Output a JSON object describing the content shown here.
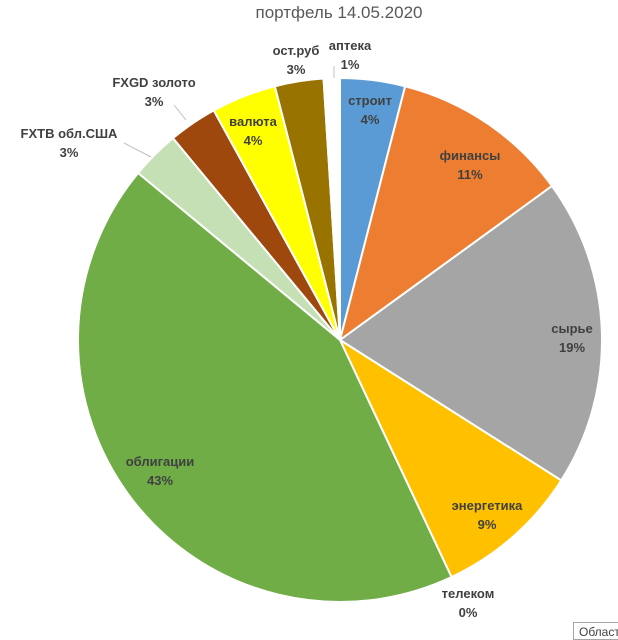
{
  "chart_data": {
    "type": "pie",
    "title": "портфель 14.05.2020",
    "slices": [
      {
        "label": "строит",
        "value": 4,
        "value_label": "4%",
        "color": "#5b9bd5"
      },
      {
        "label": "финансы",
        "value": 11,
        "value_label": "11%",
        "color": "#ed7d31"
      },
      {
        "label": "сырье",
        "value": 19,
        "value_label": "19%",
        "color": "#a5a5a5"
      },
      {
        "label": "энергетика",
        "value": 9,
        "value_label": "9%",
        "color": "#ffc000"
      },
      {
        "label": "телеком",
        "value": 0,
        "value_label": "0%",
        "color": "#4472c4"
      },
      {
        "label": "облигации",
        "value": 43,
        "value_label": "43%",
        "color": "#70ad47"
      },
      {
        "label": "FXTB обл.США",
        "value": 3,
        "value_label": "3%",
        "color": "#c5e0b4"
      },
      {
        "label": "FXGD золото",
        "value": 3,
        "value_label": "3%",
        "color": "#9e480e"
      },
      {
        "label": "валюта",
        "value": 4,
        "value_label": "4%",
        "color": "#ffff00"
      },
      {
        "label": "ост.руб",
        "value": 3,
        "value_label": "3%",
        "color": "#997300"
      },
      {
        "label": "аптека",
        "value": 1,
        "value_label": "1%",
        "color": "#ffffff"
      }
    ],
    "legend": "none",
    "data_labels": "category name and percentage"
  },
  "ui": {
    "corner_tab_label": "Област"
  }
}
